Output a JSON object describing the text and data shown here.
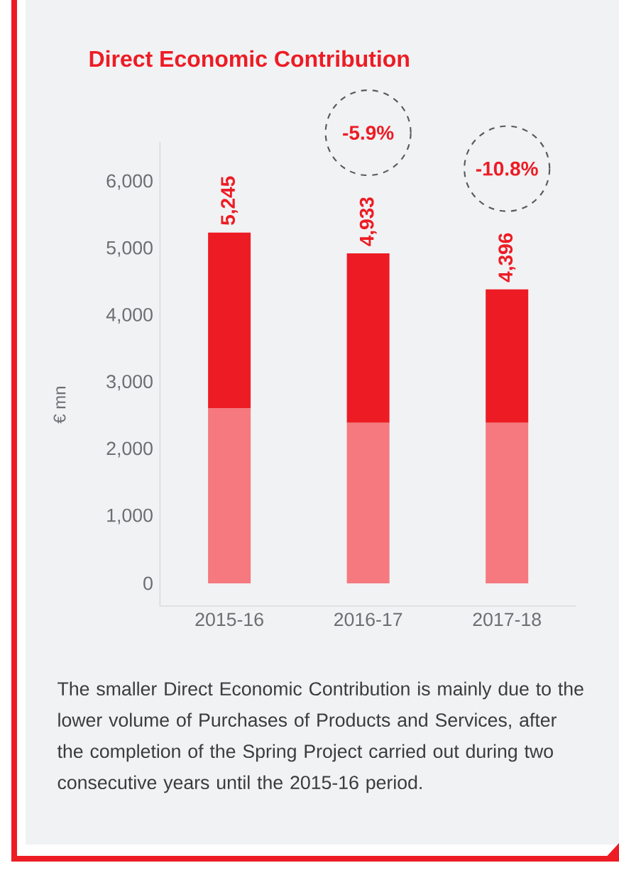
{
  "chart_data": {
    "type": "bar",
    "title": "Direct Economic Contribution",
    "ylabel": "€ mn",
    "categories": [
      "2015-16",
      "2016-17",
      "2017-18"
    ],
    "stacked": true,
    "series": [
      {
        "color": "#f5797e",
        "values": [
          2620,
          2400,
          2400
        ]
      },
      {
        "color": "#ed1c24",
        "values": [
          2625,
          2533,
          1996
        ]
      }
    ],
    "totals": [
      "5,245",
      "4,933",
      "4,396"
    ],
    "ylim": [
      -340,
      6600
    ],
    "yticks": [
      0,
      {
        "value": 1000,
        "label": "1,000"
      },
      {
        "value": 2000,
        "label": "2,000"
      },
      {
        "value": 3000,
        "label": "3,000"
      },
      {
        "value": 4000,
        "label": "4,000"
      },
      {
        "value": 5000,
        "label": "5,000"
      },
      {
        "value": 6000,
        "label": "6,000"
      }
    ],
    "grid": false,
    "annotations": [
      "-5.9%",
      "-10.8%",
      "The smaller Direct Economic Contribution is mainly due to the lower volume of Purchases of Products and Services, after the completion of the Spring Project carried out during two consecutive years until the 2015-16 period."
    ]
  }
}
